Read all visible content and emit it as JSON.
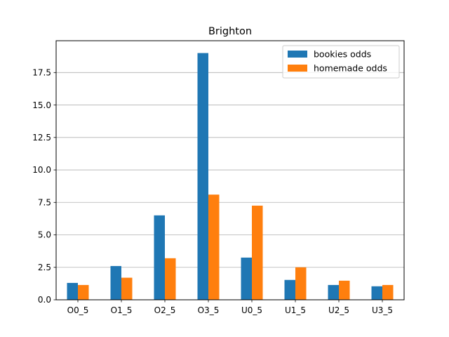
{
  "chart_data": {
    "type": "bar",
    "title": "Brighton",
    "xlabel": "",
    "ylabel": "",
    "categories": [
      "O0_5",
      "O1_5",
      "O2_5",
      "O3_5",
      "U0_5",
      "U1_5",
      "U2_5",
      "U3_5"
    ],
    "series": [
      {
        "name": "bookies odds",
        "color": "#1f77b4",
        "values": [
          1.3,
          2.6,
          6.5,
          19.0,
          3.25,
          1.53,
          1.14,
          1.04
        ]
      },
      {
        "name": "homemade odds",
        "color": "#ff7f0e",
        "values": [
          1.14,
          1.7,
          3.2,
          8.1,
          7.25,
          2.5,
          1.47,
          1.14
        ]
      }
    ],
    "ylim": [
      0,
      19.95
    ],
    "yticks": [
      0.0,
      2.5,
      5.0,
      7.5,
      10.0,
      12.5,
      15.0,
      17.5
    ],
    "ytick_labels": [
      "0.0",
      "2.5",
      "5.0",
      "7.5",
      "10.0",
      "12.5",
      "15.0",
      "17.5"
    ],
    "grid": "y",
    "legend_position": "top-right"
  }
}
